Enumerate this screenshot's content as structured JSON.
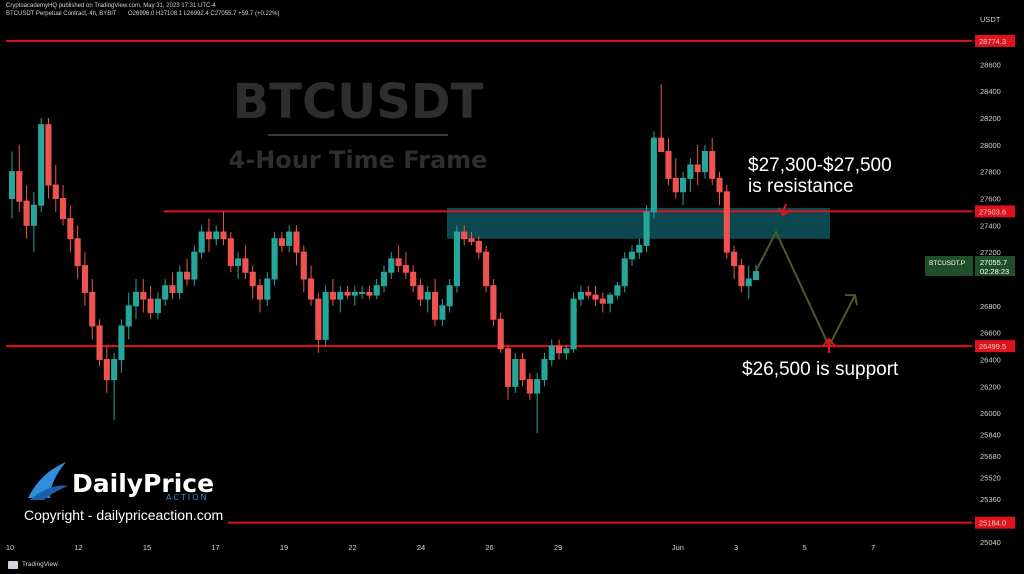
{
  "header": {
    "publisher": "CryptoacademyHQ published on TradingView.com, May 31, 2023 17:31 UTC-4",
    "symbol": "BTCUSDT Perpetual Contract, 4h, BYBIT",
    "ohlc": "O26996.0 H27108.1 L26992.4 C27055.7 +59.7 (+0.22%)"
  },
  "axis": {
    "currency": "USDT"
  },
  "watermark": {
    "title": "BTCUSDT",
    "subtitle": "4-Hour Time Frame"
  },
  "annotations": {
    "resistance_line1": "$27,300-$27,500",
    "resistance_line2": "is resistance",
    "support": "$26,500 is support"
  },
  "branding": {
    "logo_main": "DailyPrice",
    "logo_sub": "ACTION",
    "copyright": "Copyright - dailypriceaction.com"
  },
  "footer": {
    "tradingview": "TradingView"
  },
  "price_badge": {
    "symbol": "BTCUSDT.P",
    "price": "27055.7",
    "countdown": "02:28:23"
  },
  "colors": {
    "up": "#26a69a",
    "down": "#ef5350",
    "level_line": "#e0121b",
    "zone": "#0e5a63",
    "projection": "#4b5a2b",
    "badge": "#1f4e2b"
  },
  "chart_data": {
    "type": "candlestick",
    "title": "BTCUSDT",
    "subtitle": "4-Hour Time Frame",
    "ylabel": "USDT",
    "ylim": [
      25040,
      28960
    ],
    "y_ticks": [
      28600,
      28400,
      28200,
      28000,
      27800,
      27600,
      27400,
      27200,
      26800,
      26600,
      26400,
      26200,
      26000,
      25840,
      25680,
      25520,
      25360,
      25200,
      25040
    ],
    "x_ticks": [
      "10",
      "12",
      "15",
      "17",
      "19",
      "22",
      "24",
      "26",
      "29",
      "Jun",
      "3",
      "5",
      "7"
    ],
    "horizontal_levels": [
      {
        "price": 28774.3,
        "label": "28774.3"
      },
      {
        "price": 27503.6,
        "label": "27503.6"
      },
      {
        "price": 26499.5,
        "label": "26499.5"
      },
      {
        "price": 25184.0,
        "label": "25184.0"
      }
    ],
    "resistance_zone": [
      27300,
      27500
    ],
    "support_level": 26500,
    "current_price": 27055.7,
    "projection_path": [
      27350,
      26500,
      26880
    ],
    "ohlc": [
      [
        27600,
        27950,
        27450,
        27800
      ],
      [
        27800,
        28000,
        27500,
        27580
      ],
      [
        27580,
        27700,
        27300,
        27400
      ],
      [
        27400,
        27650,
        27200,
        27550
      ],
      [
        27550,
        28200,
        27500,
        28150
      ],
      [
        28150,
        28200,
        27600,
        27700
      ],
      [
        27700,
        27850,
        27500,
        27600
      ],
      [
        27600,
        27700,
        27400,
        27450
      ],
      [
        27450,
        27550,
        27200,
        27300
      ],
      [
        27300,
        27400,
        27000,
        27100
      ],
      [
        27100,
        27200,
        26800,
        26900
      ],
      [
        26900,
        27000,
        26550,
        26650
      ],
      [
        26650,
        26700,
        26350,
        26400
      ],
      [
        26400,
        26500,
        26150,
        26250
      ],
      [
        26250,
        26450,
        25950,
        26400
      ],
      [
        26400,
        26700,
        26300,
        26650
      ],
      [
        26650,
        26900,
        26550,
        26800
      ],
      [
        26800,
        27000,
        26700,
        26900
      ],
      [
        26900,
        27000,
        26750,
        26850
      ],
      [
        26850,
        26950,
        26700,
        26750
      ],
      [
        26750,
        26900,
        26700,
        26850
      ],
      [
        26850,
        27000,
        26800,
        26950
      ],
      [
        26950,
        27050,
        26850,
        26900
      ],
      [
        26900,
        27100,
        26850,
        27050
      ],
      [
        27050,
        27150,
        26950,
        27000
      ],
      [
        27000,
        27250,
        26950,
        27200
      ],
      [
        27200,
        27400,
        27150,
        27350
      ],
      [
        27350,
        27450,
        27200,
        27300
      ],
      [
        27300,
        27400,
        27250,
        27350
      ],
      [
        27350,
        27500,
        27250,
        27300
      ],
      [
        27300,
        27350,
        27050,
        27100
      ],
      [
        27100,
        27200,
        27000,
        27150
      ],
      [
        27150,
        27250,
        27000,
        27050
      ],
      [
        27050,
        27100,
        26850,
        26950
      ],
      [
        26950,
        27000,
        26750,
        26850
      ],
      [
        26850,
        27050,
        26800,
        27000
      ],
      [
        27000,
        27350,
        26950,
        27300
      ],
      [
        27300,
        27350,
        27200,
        27250
      ],
      [
        27250,
        27400,
        27200,
        27350
      ],
      [
        27350,
        27400,
        27100,
        27200
      ],
      [
        27200,
        27250,
        26900,
        27000
      ],
      [
        27000,
        27100,
        26800,
        26850
      ],
      [
        26850,
        26900,
        26450,
        26550
      ],
      [
        26550,
        26950,
        26500,
        26900
      ],
      [
        26900,
        27000,
        26800,
        26850
      ],
      [
        26850,
        26950,
        26750,
        26900
      ],
      [
        26900,
        26950,
        26850,
        26880
      ],
      [
        26880,
        26950,
        26800,
        26900
      ],
      [
        26900,
        26950,
        26850,
        26900
      ],
      [
        26900,
        26950,
        26850,
        26880
      ],
      [
        26880,
        27000,
        26850,
        26950
      ],
      [
        26950,
        27100,
        26900,
        27050
      ],
      [
        27050,
        27200,
        27000,
        27150
      ],
      [
        27150,
        27250,
        27050,
        27100
      ],
      [
        27100,
        27200,
        27000,
        27050
      ],
      [
        27050,
        27100,
        26900,
        26950
      ],
      [
        26950,
        27000,
        26800,
        26850
      ],
      [
        26850,
        26950,
        26750,
        26900
      ],
      [
        26900,
        27000,
        26650,
        26700
      ],
      [
        26700,
        26850,
        26650,
        26800
      ],
      [
        26800,
        27000,
        26750,
        26950
      ],
      [
        26950,
        27400,
        26900,
        27350
      ],
      [
        27350,
        27400,
        27250,
        27300
      ],
      [
        27300,
        27350,
        27250,
        27280
      ],
      [
        27280,
        27320,
        27150,
        27200
      ],
      [
        27200,
        27250,
        26900,
        26950
      ],
      [
        26950,
        27000,
        26650,
        26700
      ],
      [
        26700,
        26750,
        26450,
        26480
      ],
      [
        26480,
        26500,
        26100,
        26200
      ],
      [
        26200,
        26450,
        26150,
        26400
      ],
      [
        26400,
        26450,
        26200,
        26250
      ],
      [
        26250,
        26300,
        26100,
        26150
      ],
      [
        26150,
        26300,
        25850,
        26250
      ],
      [
        26250,
        26450,
        26200,
        26400
      ],
      [
        26400,
        26550,
        26350,
        26500
      ],
      [
        26500,
        26550,
        26400,
        26450
      ],
      [
        26450,
        26500,
        26400,
        26480
      ],
      [
        26480,
        26900,
        26450,
        26850
      ],
      [
        26850,
        26950,
        26800,
        26900
      ],
      [
        26900,
        26950,
        26850,
        26880
      ],
      [
        26880,
        26950,
        26800,
        26850
      ],
      [
        26850,
        26900,
        26750,
        26820
      ],
      [
        26820,
        26900,
        26750,
        26880
      ],
      [
        26880,
        26980,
        26850,
        26950
      ],
      [
        26950,
        27200,
        26900,
        27150
      ],
      [
        27150,
        27250,
        27100,
        27200
      ],
      [
        27200,
        27300,
        27150,
        27250
      ],
      [
        27250,
        27550,
        27200,
        27500
      ],
      [
        27500,
        28100,
        27450,
        28050
      ],
      [
        28050,
        28450,
        27950,
        27950
      ],
      [
        27950,
        28050,
        27700,
        27750
      ],
      [
        27750,
        27900,
        27600,
        27650
      ],
      [
        27650,
        27800,
        27550,
        27750
      ],
      [
        27750,
        27900,
        27650,
        27850
      ],
      [
        27850,
        28000,
        27700,
        27800
      ],
      [
        27800,
        28000,
        27750,
        27950
      ],
      [
        27950,
        28050,
        27700,
        27750
      ],
      [
        27750,
        27800,
        27550,
        27650
      ],
      [
        27650,
        27700,
        27150,
        27200
      ],
      [
        27200,
        27250,
        27000,
        27100
      ],
      [
        27100,
        27150,
        26900,
        26950
      ],
      [
        26950,
        27100,
        26850,
        27000
      ],
      [
        26996,
        27108,
        26992,
        27056
      ]
    ]
  }
}
